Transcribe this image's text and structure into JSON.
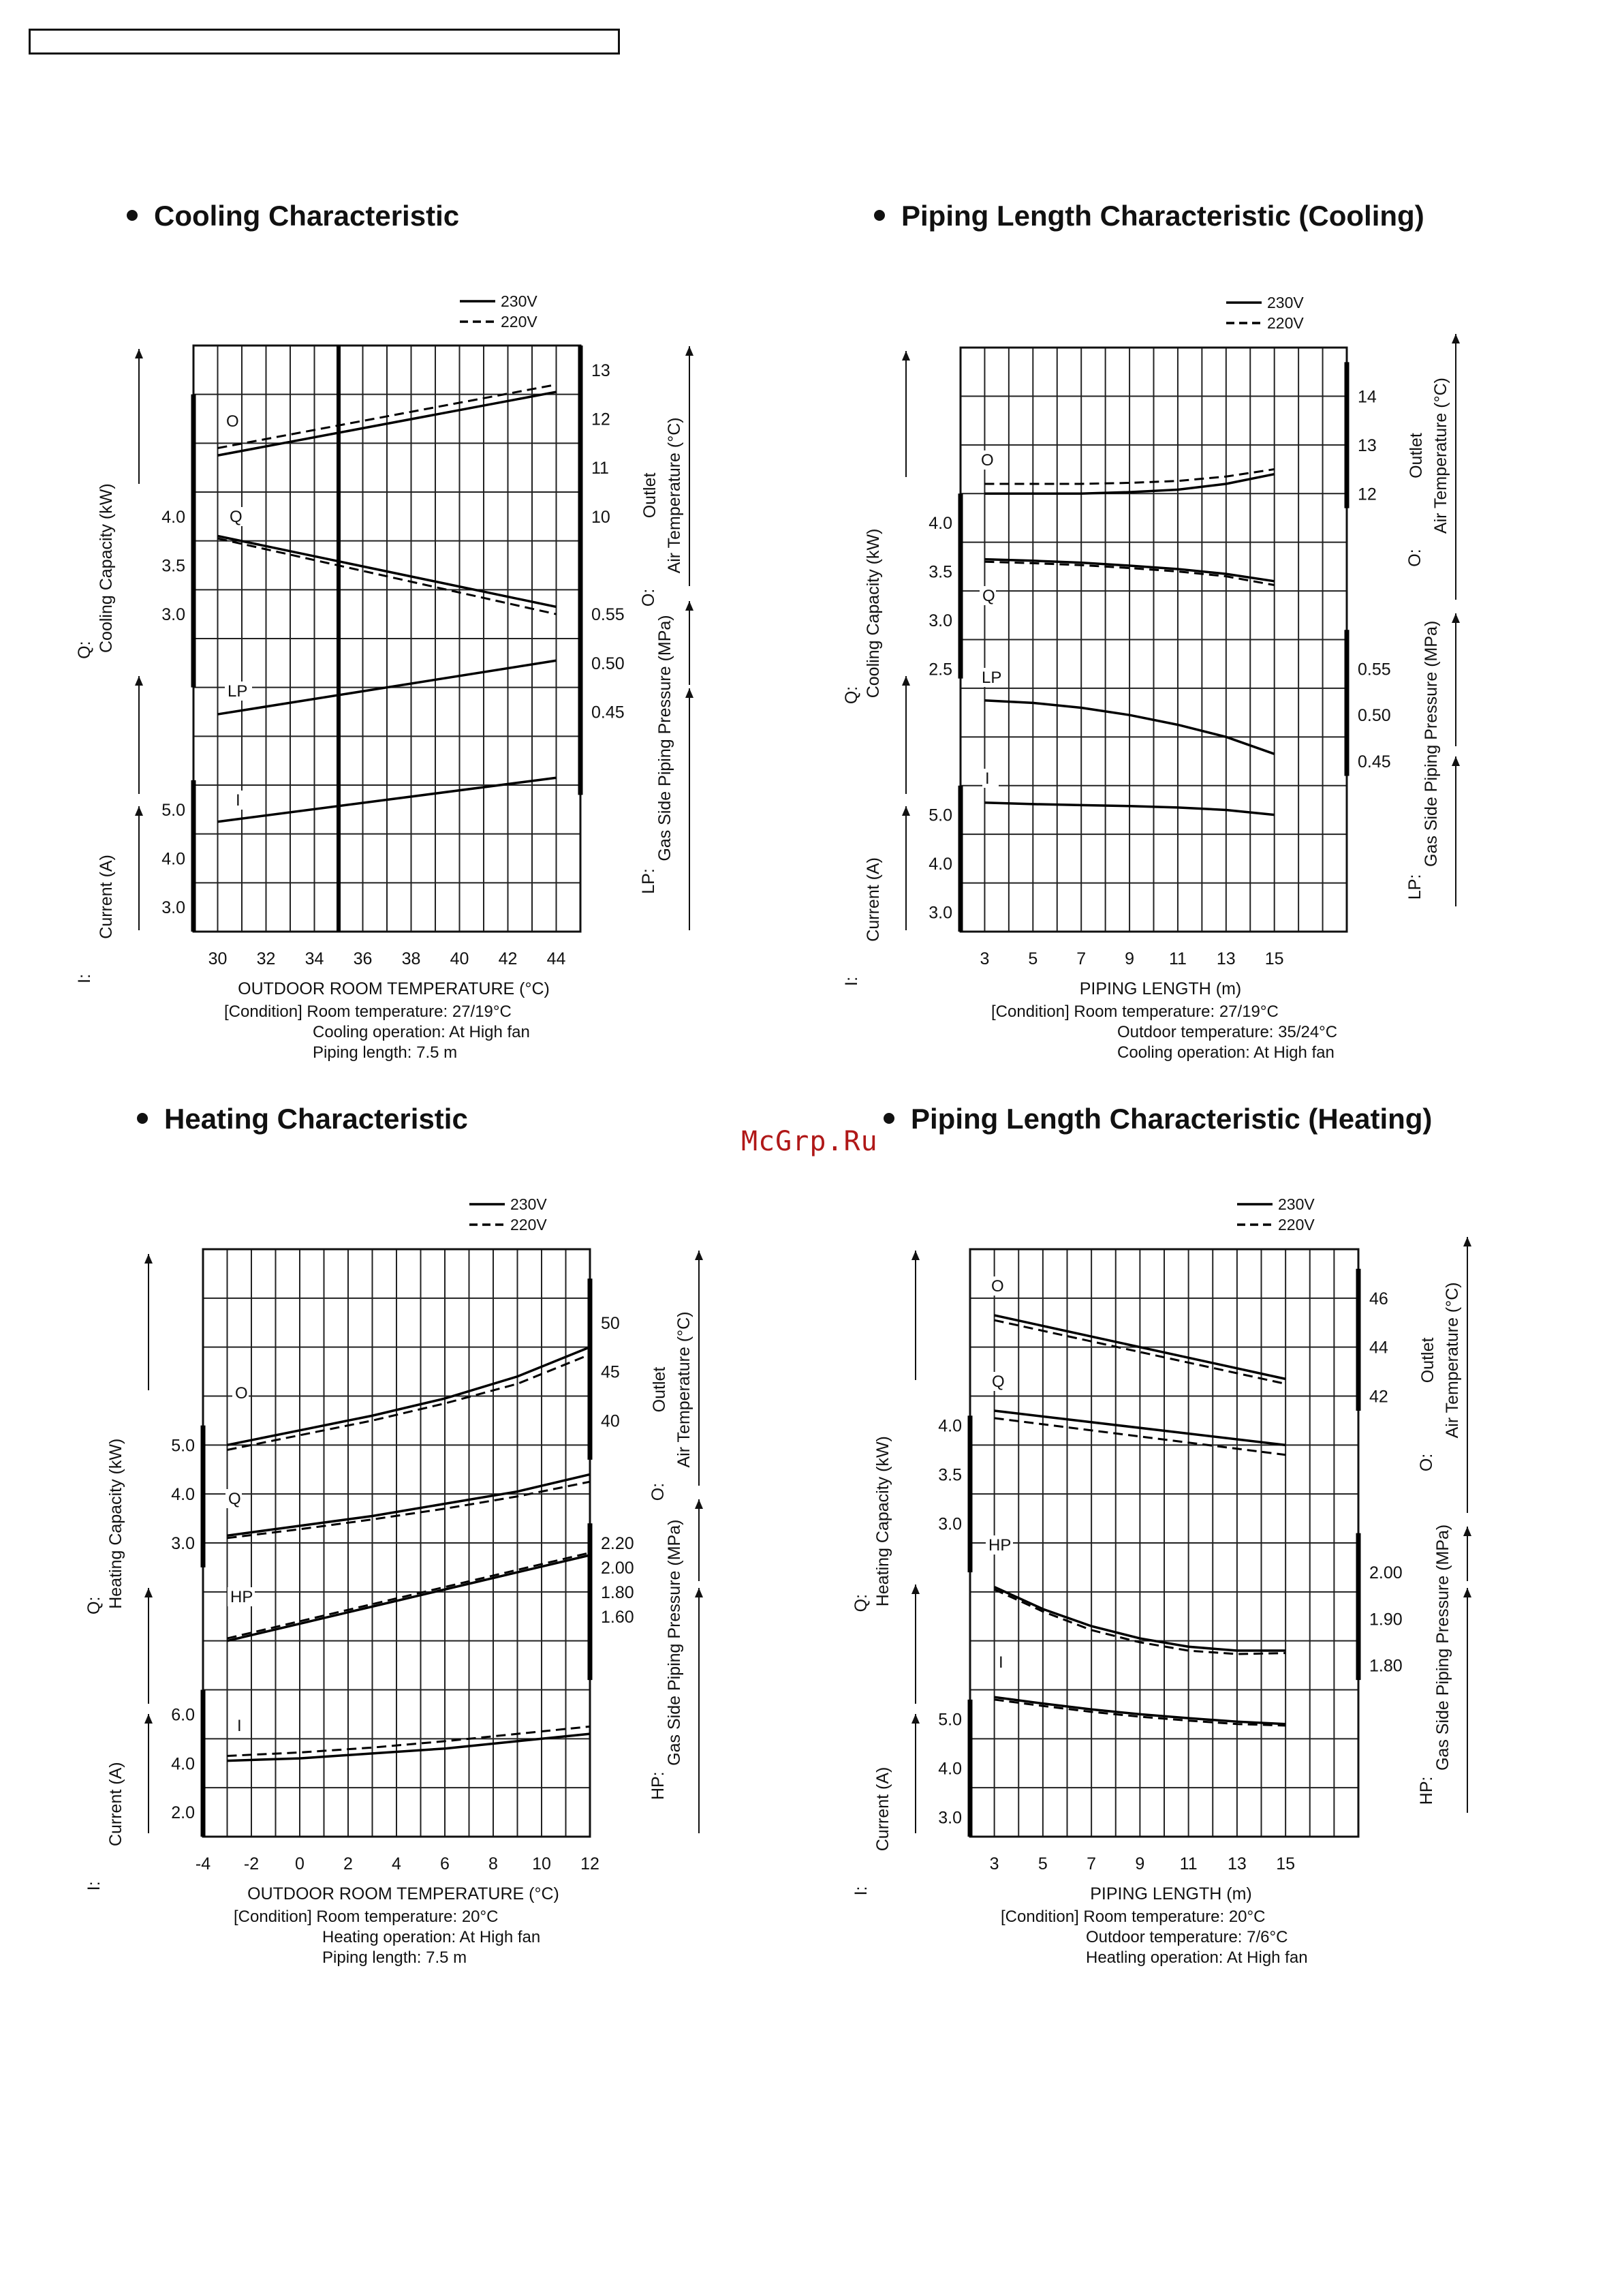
{
  "chart_data": [
    {
      "type": "line",
      "title": "Cooling Characteristic",
      "xlabel": "OUTDOOR  ROOM TEMPERATURE (°C)",
      "xlim": [
        29,
        45
      ],
      "x_ticks": [
        "30",
        "32",
        "34",
        "36",
        "38",
        "40",
        "42",
        "44"
      ],
      "legend": [
        "230V",
        "220V"
      ],
      "reference_line_x": 35,
      "condition": [
        "[Condition]  Room temperature: 27/19°C",
        "Cooling operation: At High fan",
        "Piping length: 7.5 m"
      ],
      "left_groups": [
        {
          "code": "Q:",
          "label": "Cooling Capacity (kW)",
          "ticks": [
            {
              "label": "4.0",
              "row": 3.5
            },
            {
              "label": "3.5",
              "row": 4.5
            },
            {
              "label": "3.0",
              "row": 5.5
            }
          ]
        },
        {
          "code": "I:",
          "label": "Current (A)",
          "ticks": [
            {
              "label": "5.0",
              "row": 9.5
            },
            {
              "label": "4.0",
              "row": 10.5
            },
            {
              "label": "3.0",
              "row": 11.5
            }
          ]
        }
      ],
      "right_groups": [
        {
          "code": "O:",
          "label": "Outlet\nAir Temperature (°C)",
          "ticks": [
            {
              "label": "13",
              "row": 0.5
            },
            {
              "label": "12",
              "row": 1.5
            },
            {
              "label": "11",
              "row": 2.5
            },
            {
              "label": "10",
              "row": 3.5
            }
          ]
        },
        {
          "code": "LP:",
          "label": "Gas Side Piping Pressure (MPa)",
          "ticks": [
            {
              "label": "0.55",
              "row": 5.5
            },
            {
              "label": "0.50",
              "row": 6.5
            },
            {
              "label": "0.45",
              "row": 7.5
            }
          ]
        }
      ],
      "series": [
        {
          "label": "O",
          "name": "230V",
          "x": [
            30,
            44
          ],
          "row": [
            2.25,
            0.95
          ]
        },
        {
          "label": "O",
          "name": "220V",
          "x": [
            30,
            44
          ],
          "row": [
            2.1,
            0.8
          ]
        },
        {
          "label": "Q",
          "name": "230V",
          "x": [
            30,
            44
          ],
          "row": [
            3.9,
            5.35
          ]
        },
        {
          "label": "Q",
          "name": "220V",
          "x": [
            30,
            44
          ],
          "row": [
            3.95,
            5.5
          ]
        },
        {
          "label": "LP",
          "name": "230V",
          "x": [
            30,
            44
          ],
          "row": [
            7.55,
            6.45
          ]
        },
        {
          "label": "I",
          "name": "230V",
          "x": [
            30,
            44
          ],
          "row": [
            9.75,
            8.85
          ]
        }
      ]
    },
    {
      "type": "line",
      "title": "Piping Length Characteristic (Cooling)",
      "xlabel": "PIPING LENGTH (m)",
      "xlim": [
        2,
        18
      ],
      "x_ticks": [
        "3",
        "5",
        "7",
        "9",
        "11",
        "13",
        "15"
      ],
      "legend": [
        "230V",
        "220V"
      ],
      "condition": [
        "[Condition]  Room temperature: 27/19°C",
        "Outdoor temperature: 35/24°C",
        "Cooling operation: At High fan"
      ],
      "left_groups": [
        {
          "code": "Q:",
          "label": "Cooling Capacity (kW)",
          "ticks": [
            {
              "label": "4.0",
              "row": 3.6
            },
            {
              "label": "3.5",
              "row": 4.6
            },
            {
              "label": "3.0",
              "row": 5.6
            },
            {
              "label": "2.5",
              "row": 6.6
            }
          ]
        },
        {
          "code": "I:",
          "label": "Current (A)",
          "ticks": [
            {
              "label": "5.0",
              "row": 9.6
            },
            {
              "label": "4.0",
              "row": 10.6
            },
            {
              "label": "3.0",
              "row": 11.6
            }
          ]
        }
      ],
      "right_groups": [
        {
          "code": "O:",
          "label": "Outlet\nAir Temperature (°C)",
          "ticks": [
            {
              "label": "14",
              "row": 1.0
            },
            {
              "label": "13",
              "row": 2.0
            },
            {
              "label": "12",
              "row": 3.0
            }
          ]
        },
        {
          "code": "LP:",
          "label": "Gas Side Piping Pressure (MPa)",
          "ticks": [
            {
              "label": "0.55",
              "row": 6.6
            },
            {
              "label": "0.50",
              "row": 7.55
            },
            {
              "label": "0.45",
              "row": 8.5
            }
          ]
        }
      ],
      "series": [
        {
          "label": "O",
          "name": "230V",
          "x": [
            3,
            5,
            7,
            9,
            11,
            13,
            15
          ],
          "row": [
            3.0,
            3.0,
            3.0,
            2.97,
            2.92,
            2.8,
            2.6
          ]
        },
        {
          "label": "O",
          "name": "220V",
          "x": [
            3,
            5,
            7,
            9,
            11,
            13,
            15
          ],
          "row": [
            2.8,
            2.8,
            2.8,
            2.78,
            2.74,
            2.65,
            2.5
          ]
        },
        {
          "label": "Q",
          "name": "230V",
          "x": [
            3,
            5,
            7,
            9,
            11,
            13,
            15
          ],
          "row": [
            4.35,
            4.38,
            4.42,
            4.48,
            4.55,
            4.65,
            4.8
          ]
        },
        {
          "label": "Q",
          "name": "220V",
          "x": [
            3,
            5,
            7,
            9,
            11,
            13,
            15
          ],
          "row": [
            4.4,
            4.43,
            4.47,
            4.53,
            4.6,
            4.7,
            4.88
          ]
        },
        {
          "label": "LP",
          "name": "230V",
          "x": [
            3,
            5,
            7,
            9,
            11,
            13,
            15
          ],
          "row": [
            7.25,
            7.3,
            7.4,
            7.55,
            7.75,
            8.0,
            8.35
          ]
        },
        {
          "label": "I",
          "name": "230V",
          "x": [
            3,
            5,
            7,
            9,
            11,
            13,
            15
          ],
          "row": [
            9.35,
            9.38,
            9.4,
            9.42,
            9.45,
            9.5,
            9.6
          ]
        }
      ]
    },
    {
      "type": "line",
      "title": "Heating Characteristic",
      "xlabel": "OUTDOOR  ROOM TEMPERATURE (°C)",
      "xlim": [
        -4,
        12
      ],
      "x_ticks": [
        "-4",
        "-2",
        "0",
        "2",
        "4",
        "6",
        "8",
        "10",
        "12"
      ],
      "legend": [
        "230V",
        "220V"
      ],
      "condition": [
        "[Condition]  Room temperature: 20°C",
        "Heating operation: At High fan",
        "Piping length: 7.5 m"
      ],
      "left_groups": [
        {
          "code": "Q:",
          "label": "Heating Capacity (kW)",
          "ticks": [
            {
              "label": "5.0",
              "row": 4.0
            },
            {
              "label": "4.0",
              "row": 5.0
            },
            {
              "label": "3.0",
              "row": 6.0
            }
          ]
        },
        {
          "code": "I:",
          "label": "Current (A)",
          "ticks": [
            {
              "label": "6.0",
              "row": 9.5
            },
            {
              "label": "4.0",
              "row": 10.5
            },
            {
              "label": "2.0",
              "row": 11.5
            }
          ]
        }
      ],
      "right_groups": [
        {
          "code": "O:",
          "label": "Outlet\nAir Temperature (°C)",
          "ticks": [
            {
              "label": "50",
              "row": 1.5
            },
            {
              "label": "45",
              "row": 2.5
            },
            {
              "label": "40",
              "row": 3.5
            }
          ]
        },
        {
          "code": "HP:",
          "label": "Gas Side Piping Pressure (MPa)",
          "ticks": [
            {
              "label": "2.20",
              "row": 6.0
            },
            {
              "label": "2.00",
              "row": 6.5
            },
            {
              "label": "1.80",
              "row": 7.0
            },
            {
              "label": "1.60",
              "row": 7.5
            }
          ]
        }
      ],
      "series": [
        {
          "label": "O",
          "name": "230V",
          "x": [
            -3,
            0,
            3,
            6,
            9,
            12
          ],
          "row": [
            4.0,
            3.7,
            3.4,
            3.05,
            2.6,
            2.0
          ]
        },
        {
          "label": "O",
          "name": "220V",
          "x": [
            -3,
            0,
            3,
            6,
            9,
            12
          ],
          "row": [
            4.1,
            3.8,
            3.5,
            3.15,
            2.75,
            2.15
          ]
        },
        {
          "label": "Q",
          "name": "230V",
          "x": [
            -3,
            0,
            3,
            6,
            9,
            12
          ],
          "row": [
            5.85,
            5.65,
            5.45,
            5.2,
            4.95,
            4.6
          ]
        },
        {
          "label": "Q",
          "name": "220V",
          "x": [
            -3,
            0,
            3,
            6,
            9,
            12
          ],
          "row": [
            5.9,
            5.72,
            5.52,
            5.3,
            5.05,
            4.75
          ]
        },
        {
          "label": "HP",
          "name": "230V",
          "x": [
            -3,
            0,
            3,
            6,
            9,
            12
          ],
          "row": [
            8.0,
            7.65,
            7.3,
            6.95,
            6.6,
            6.25
          ]
        },
        {
          "label": "HP",
          "name": "220V",
          "x": [
            -3,
            0,
            3,
            6,
            9,
            12
          ],
          "row": [
            7.95,
            7.6,
            7.25,
            6.9,
            6.55,
            6.2
          ]
        },
        {
          "label": "I",
          "name": "230V",
          "x": [
            -3,
            0,
            3,
            6,
            9,
            12
          ],
          "row": [
            10.45,
            10.4,
            10.3,
            10.2,
            10.05,
            9.9
          ]
        },
        {
          "label": "I",
          "name": "220V",
          "x": [
            -3,
            0,
            3,
            6,
            9,
            12
          ],
          "row": [
            10.35,
            10.28,
            10.18,
            10.05,
            9.9,
            9.75
          ]
        }
      ]
    },
    {
      "type": "line",
      "title": "Piping Length Characteristic (Heating)",
      "xlabel": "PIPING LENGTH (m)",
      "xlim": [
        2,
        18
      ],
      "x_ticks": [
        "3",
        "5",
        "7",
        "9",
        "11",
        "13",
        "15"
      ],
      "legend": [
        "230V",
        "220V"
      ],
      "condition": [
        "[Condition]  Room temperature: 20°C",
        "Outdoor temperature: 7/6°C",
        "Heatling operation: At High fan"
      ],
      "left_groups": [
        {
          "code": "Q:",
          "label": "Heating Capacity (kW)",
          "ticks": [
            {
              "label": "4.0",
              "row": 3.6
            },
            {
              "label": "3.5",
              "row": 4.6
            },
            {
              "label": "3.0",
              "row": 5.6
            }
          ]
        },
        {
          "code": "I:",
          "label": "Current (A)",
          "ticks": [
            {
              "label": "5.0",
              "row": 9.6
            },
            {
              "label": "4.0",
              "row": 10.6
            },
            {
              "label": "3.0",
              "row": 11.6
            }
          ]
        }
      ],
      "right_groups": [
        {
          "code": "O:",
          "label": "Outlet\nAir Temperature (°C)",
          "ticks": [
            {
              "label": "46",
              "row": 1.0
            },
            {
              "label": "44",
              "row": 2.0
            },
            {
              "label": "42",
              "row": 3.0
            }
          ]
        },
        {
          "code": "HP:",
          "label": "Gas Side Piping Pressure (MPa)",
          "ticks": [
            {
              "label": "2.00",
              "row": 6.6
            },
            {
              "label": "1.90",
              "row": 7.55
            },
            {
              "label": "1.80",
              "row": 8.5
            }
          ]
        }
      ],
      "series": [
        {
          "label": "O",
          "name": "230V",
          "x": [
            3,
            15
          ],
          "row": [
            1.35,
            2.65
          ]
        },
        {
          "label": "O",
          "name": "220V",
          "x": [
            3,
            15
          ],
          "row": [
            1.45,
            2.75
          ]
        },
        {
          "label": "Q",
          "name": "230V",
          "x": [
            3,
            15
          ],
          "row": [
            3.3,
            4.0
          ]
        },
        {
          "label": "Q",
          "name": "220V",
          "x": [
            3,
            15
          ],
          "row": [
            3.45,
            4.2
          ]
        },
        {
          "label": "HP",
          "name": "230V",
          "x": [
            3,
            5,
            7,
            9,
            11,
            13,
            15
          ],
          "row": [
            6.9,
            7.35,
            7.7,
            7.95,
            8.12,
            8.2,
            8.2
          ]
        },
        {
          "label": "HP",
          "name": "220V",
          "x": [
            3,
            5,
            7,
            9,
            11,
            13,
            15
          ],
          "row": [
            6.95,
            7.4,
            7.78,
            8.03,
            8.2,
            8.27,
            8.25
          ]
        },
        {
          "label": "I",
          "name": "230V",
          "x": [
            3,
            5,
            7,
            9,
            11,
            13,
            15
          ],
          "row": [
            9.15,
            9.28,
            9.4,
            9.5,
            9.58,
            9.65,
            9.7
          ]
        },
        {
          "label": "I",
          "name": "220V",
          "x": [
            3,
            5,
            7,
            9,
            11,
            13,
            15
          ],
          "row": [
            9.2,
            9.33,
            9.45,
            9.55,
            9.63,
            9.7,
            9.73
          ]
        }
      ]
    }
  ],
  "watermark": "McGrp.Ru"
}
